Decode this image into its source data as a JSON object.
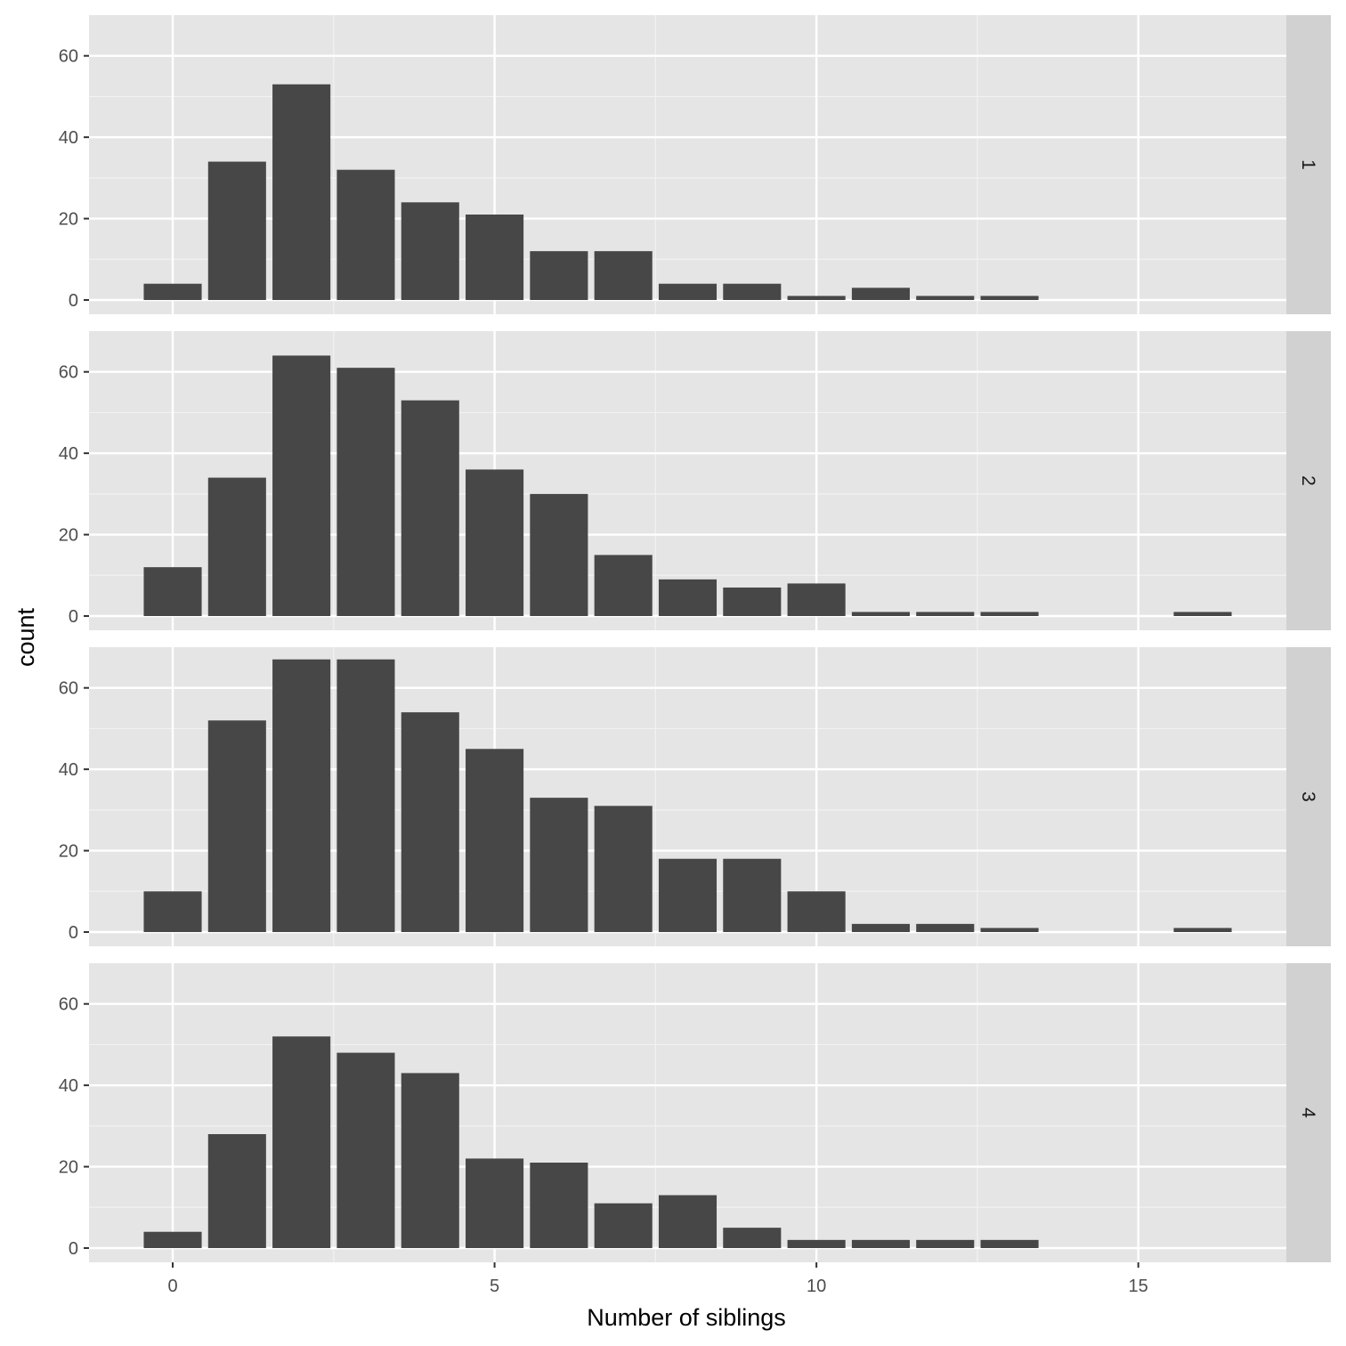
{
  "chart_data": {
    "type": "bar",
    "facet_by": "row",
    "xlabel": "Number of siblings",
    "ylabel": "count",
    "x_ticks": [
      0,
      5,
      10,
      15
    ],
    "y_ticks": [
      0,
      20,
      40,
      60
    ],
    "xlim": [
      -1.3,
      17.3
    ],
    "ylim": [
      -3.5,
      70
    ],
    "bar_color": "#474747",
    "panel_background": "#E5E5E5",
    "strip_background": "#D1D1D1",
    "grid": true,
    "x": [
      0,
      1,
      2,
      3,
      4,
      5,
      6,
      7,
      8,
      9,
      10,
      11,
      12,
      13,
      14,
      15,
      16
    ],
    "series": [
      {
        "name": "1",
        "values": [
          4,
          34,
          53,
          32,
          24,
          21,
          12,
          12,
          4,
          4,
          1,
          3,
          1,
          1,
          0,
          0,
          0
        ]
      },
      {
        "name": "2",
        "values": [
          12,
          34,
          64,
          61,
          53,
          36,
          30,
          15,
          9,
          7,
          8,
          1,
          1,
          1,
          0,
          0,
          1
        ]
      },
      {
        "name": "3",
        "values": [
          10,
          52,
          67,
          67,
          54,
          45,
          33,
          31,
          18,
          18,
          10,
          2,
          2,
          1,
          0,
          0,
          1
        ]
      },
      {
        "name": "4",
        "values": [
          4,
          28,
          52,
          48,
          43,
          22,
          21,
          11,
          13,
          5,
          2,
          2,
          2,
          2,
          0,
          0,
          0
        ]
      }
    ]
  }
}
